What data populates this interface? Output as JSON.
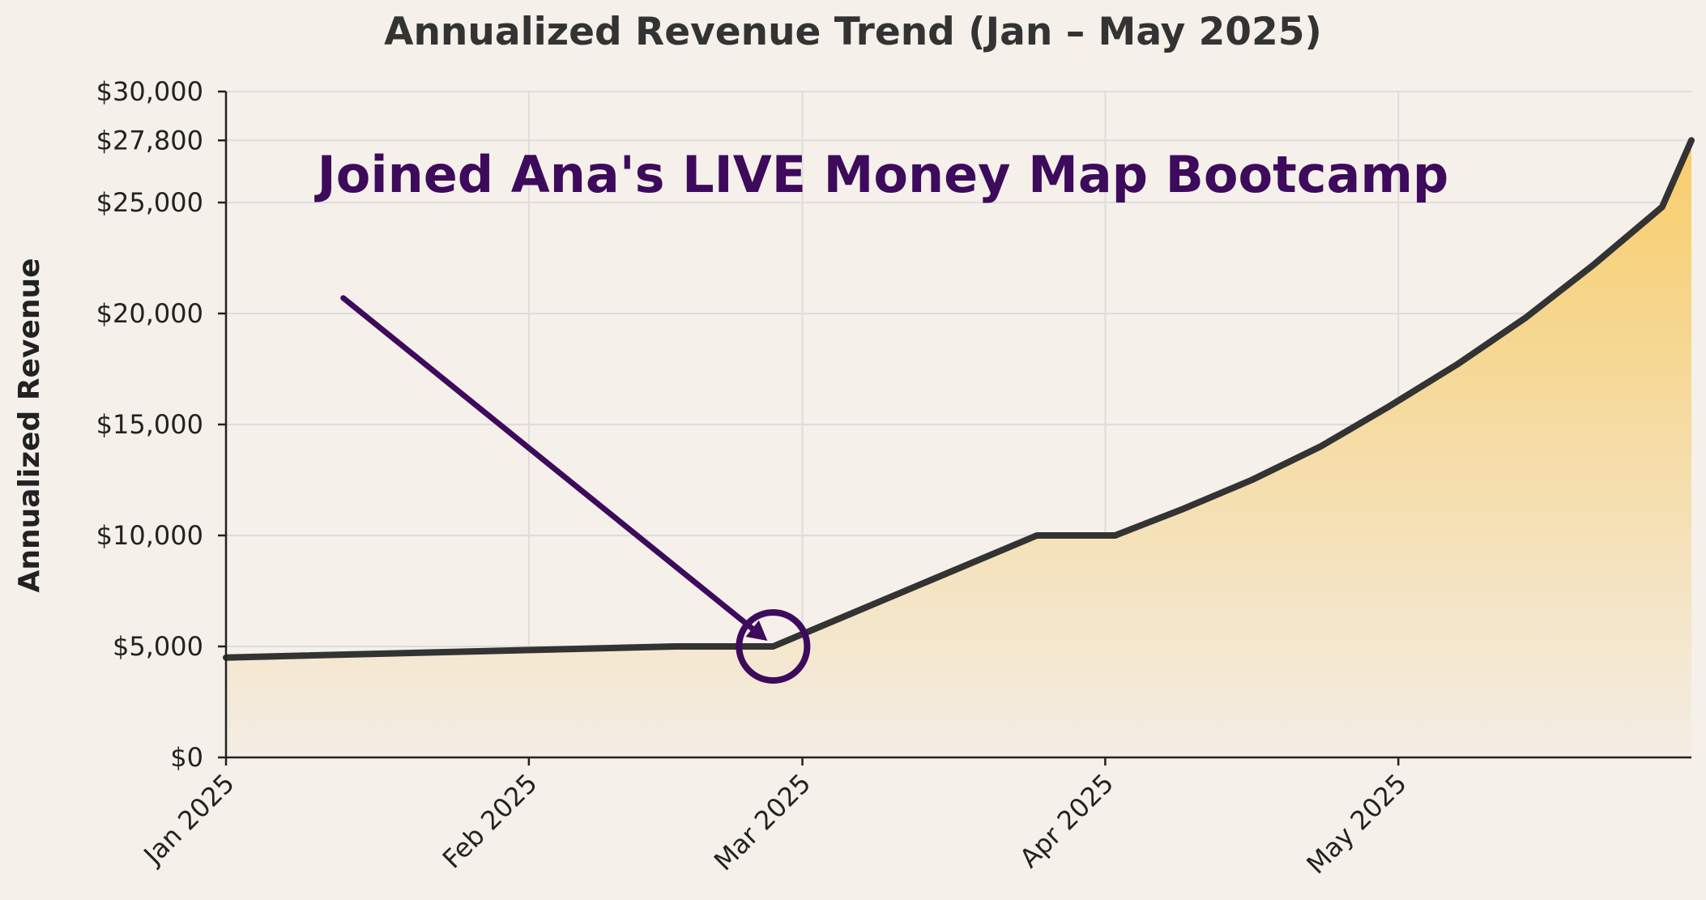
{
  "chart_data": {
    "type": "area",
    "title": "Annualized Revenue Trend (Jan – May 2025)",
    "xlabel": "",
    "ylabel": "Annualized Revenue",
    "x_scale": "date",
    "xlim": [
      "2025-01-01",
      "2025-05-31"
    ],
    "ylim": [
      0,
      30000
    ],
    "grid": true,
    "legend": "none",
    "x_ticks": [
      {
        "date": "2025-01-01",
        "label": "Jan 2025"
      },
      {
        "date": "2025-02-01",
        "label": "Feb 2025"
      },
      {
        "date": "2025-03-01",
        "label": "Mar 2025"
      },
      {
        "date": "2025-04-01",
        "label": "Apr 2025"
      },
      {
        "date": "2025-05-01",
        "label": "May 2025"
      }
    ],
    "y_ticks": [
      {
        "value": 0,
        "label": "$0"
      },
      {
        "value": 5000,
        "label": "$5,000"
      },
      {
        "value": 10000,
        "label": "$10,000"
      },
      {
        "value": 15000,
        "label": "$15,000"
      },
      {
        "value": 20000,
        "label": "$20,000"
      },
      {
        "value": 25000,
        "label": "$25,000"
      },
      {
        "value": 27800,
        "label": "$27,800"
      },
      {
        "value": 30000,
        "label": "$30,000"
      }
    ],
    "series": [
      {
        "x": [
          "2025-01-01",
          "2025-02-16",
          "2025-02-23",
          "2025-02-26",
          "2025-03-25",
          "2025-04-02",
          "2025-04-09",
          "2025-04-16",
          "2025-04-23",
          "2025-04-30",
          "2025-05-07",
          "2025-05-14",
          "2025-05-21",
          "2025-05-28",
          "2025-05-31"
        ],
        "y": [
          4500,
          5000,
          5000,
          5000,
          10000,
          10000,
          11200,
          12500,
          14000,
          15800,
          17700,
          19800,
          22200,
          24800,
          27800
        ]
      }
    ],
    "annotations": [
      {
        "text": "Joined Ana's LIVE Money Map Bootcamp",
        "target_date": "2025-02-26",
        "target_value": 5000,
        "arrow_from_date": "2025-01-13",
        "arrow_from_value": 20700,
        "marker": "circle"
      }
    ],
    "colors": {
      "background": "#f5f0e9",
      "line": "#333333",
      "fill_top": "#f8cd6a",
      "fill_bottom": "#f3ede4",
      "annotation": "#3d0a5c",
      "grid": "#dddddd",
      "axis": "#222222"
    }
  }
}
